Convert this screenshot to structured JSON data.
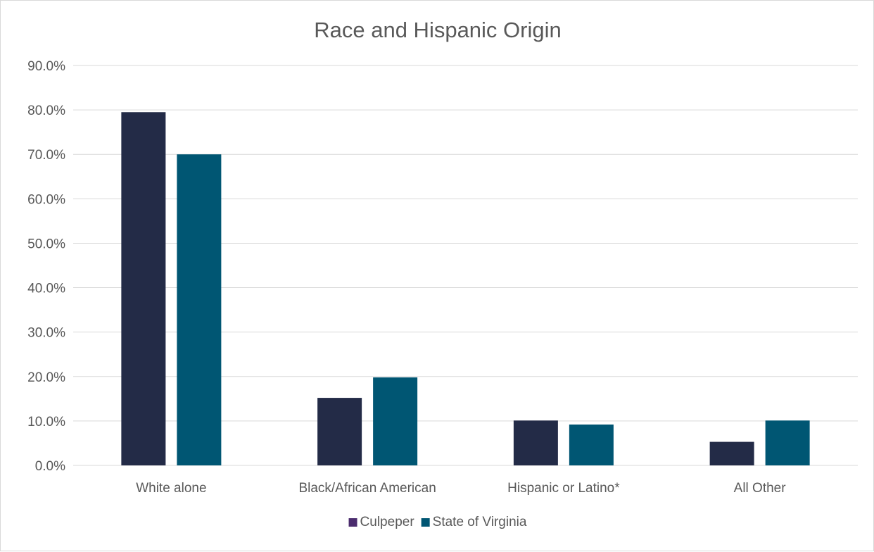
{
  "chart_data": {
    "type": "bar",
    "title": "Race and Hispanic Origin",
    "xlabel": "",
    "ylabel": "",
    "categories": [
      "White alone",
      "Black/African American",
      "Hispanic or Latino*",
      "All Other"
    ],
    "series": [
      {
        "name": "Culpeper",
        "values": [
          79.5,
          15.2,
          10.1,
          5.3
        ],
        "color": "#232b47",
        "legend_color": "#4b2c6e"
      },
      {
        "name": "State of Virginia",
        "values": [
          70.0,
          19.8,
          9.2,
          10.1
        ],
        "color": "#005673",
        "legend_color": "#005673"
      }
    ],
    "ylim": [
      0,
      90
    ],
    "ytick_step": 10,
    "ytick_labels": [
      "0.0%",
      "10.0%",
      "20.0%",
      "30.0%",
      "40.0%",
      "50.0%",
      "60.0%",
      "70.0%",
      "80.0%",
      "90.0%"
    ],
    "grid": true,
    "legend_position": "bottom-center"
  }
}
